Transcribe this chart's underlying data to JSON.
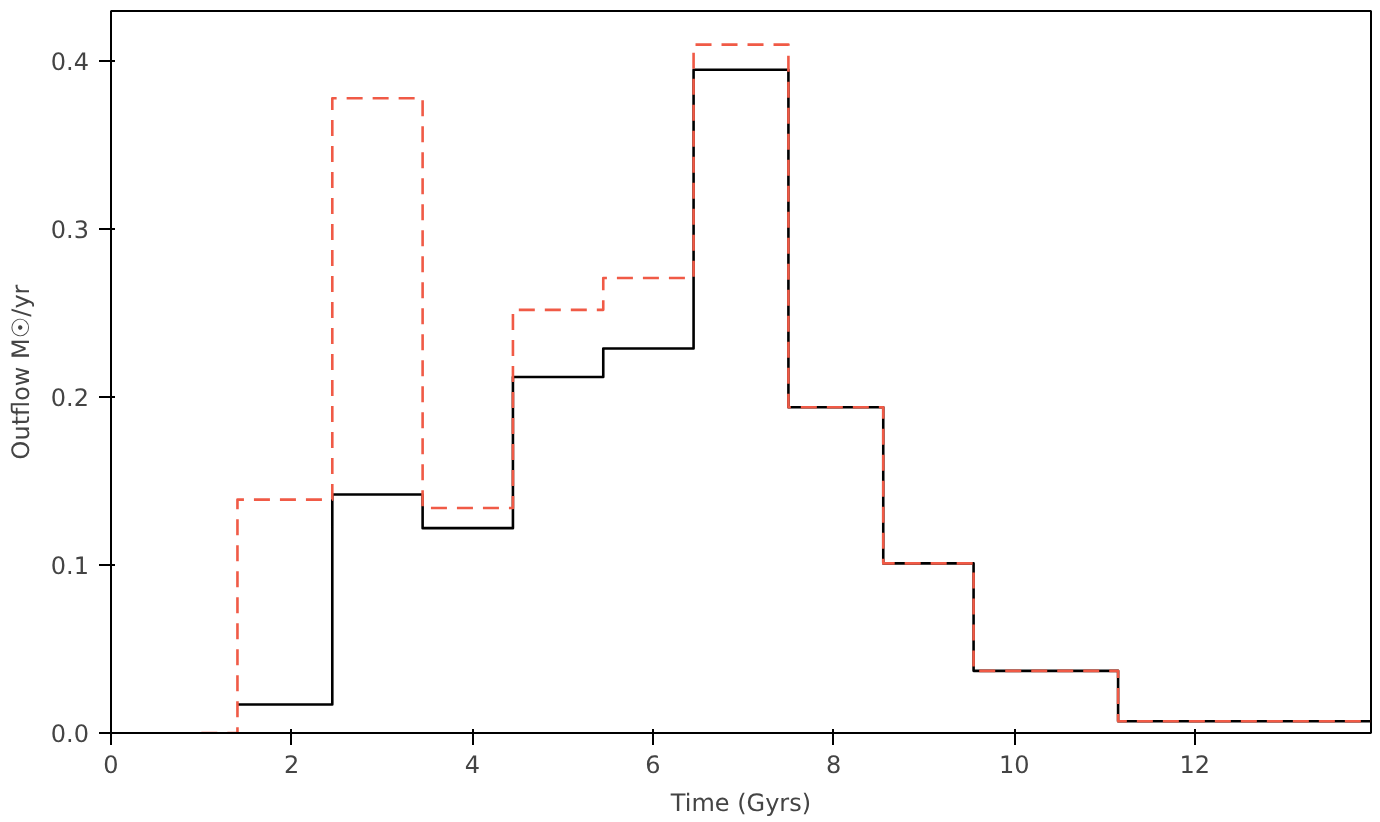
{
  "chart_data": {
    "type": "step",
    "xlabel": "Time (Gyrs)",
    "ylabel": "Outflow M☉/yr",
    "xlim": [
      0,
      13.95
    ],
    "ylim": [
      0,
      0.43
    ],
    "xticks": [
      0,
      2,
      4,
      6,
      8,
      10,
      12
    ],
    "yticks": [
      {
        "value": 0,
        "label": "0.0"
      },
      0.1,
      0.2,
      0.3,
      0.4
    ],
    "grid": false,
    "series": [
      {
        "color": "#000000",
        "line_style": "solid",
        "x": [
          1.4,
          2.45,
          3.45,
          4.45,
          5.45,
          6.45,
          7.5,
          8.55,
          9.55,
          11.15,
          13.95
        ],
        "values": [
          0.017,
          0.142,
          0.122,
          0.212,
          0.229,
          0.395,
          0.194,
          0.101,
          0.037,
          0.007,
          0.007
        ]
      },
      {
        "color": "#f05a46",
        "line_style": "dashed",
        "x": [
          1.0,
          1.4,
          2.45,
          3.45,
          4.45,
          5.45,
          6.45,
          7.5,
          8.55,
          9.55,
          11.15,
          13.95
        ],
        "values": [
          0,
          0.139,
          0.378,
          0.134,
          0.252,
          0.271,
          0.41,
          0.194,
          0.101,
          0.037,
          0.007,
          0.007
        ]
      }
    ]
  }
}
